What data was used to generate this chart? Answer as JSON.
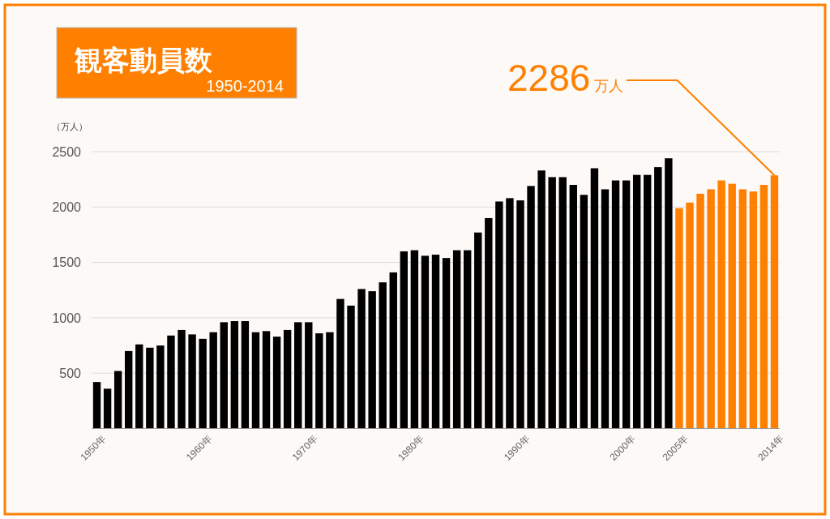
{
  "chart_data": {
    "type": "bar",
    "title": "観客動員数",
    "subtitle": "1950-2014",
    "ylabel": "（万人）",
    "categories": [
      "1950年",
      null,
      null,
      null,
      null,
      null,
      null,
      null,
      null,
      null,
      "1960年",
      null,
      null,
      null,
      null,
      null,
      null,
      null,
      null,
      null,
      "1970年",
      null,
      null,
      null,
      null,
      null,
      null,
      null,
      null,
      null,
      "1980年",
      null,
      null,
      null,
      null,
      null,
      null,
      null,
      null,
      null,
      "1990年",
      null,
      null,
      null,
      null,
      null,
      null,
      null,
      null,
      null,
      "2000年",
      null,
      null,
      null,
      null,
      "2005年",
      null,
      null,
      null,
      null,
      null,
      null,
      null,
      null,
      "2014年"
    ],
    "values": [
      420,
      360,
      520,
      700,
      760,
      730,
      750,
      840,
      890,
      850,
      810,
      870,
      960,
      970,
      970,
      870,
      880,
      830,
      890,
      960,
      960,
      860,
      870,
      1170,
      1110,
      1260,
      1240,
      1320,
      1410,
      1600,
      1610,
      1560,
      1570,
      1540,
      1610,
      1610,
      1770,
      1900,
      2050,
      2080,
      2060,
      2190,
      2330,
      2270,
      2270,
      2200,
      2110,
      2350,
      2160,
      2240,
      2240,
      2290,
      2290,
      2360,
      2440,
      1990,
      2040,
      2120,
      2160,
      2240,
      2210,
      2160,
      2140,
      2200,
      2286
    ],
    "colors": [
      "#000000",
      "#000000",
      "#000000",
      "#000000",
      "#000000",
      "#000000",
      "#000000",
      "#000000",
      "#000000",
      "#000000",
      "#000000",
      "#000000",
      "#000000",
      "#000000",
      "#000000",
      "#000000",
      "#000000",
      "#000000",
      "#000000",
      "#000000",
      "#000000",
      "#000000",
      "#000000",
      "#000000",
      "#000000",
      "#000000",
      "#000000",
      "#000000",
      "#000000",
      "#000000",
      "#000000",
      "#000000",
      "#000000",
      "#000000",
      "#000000",
      "#000000",
      "#000000",
      "#000000",
      "#000000",
      "#000000",
      "#000000",
      "#000000",
      "#000000",
      "#000000",
      "#000000",
      "#000000",
      "#000000",
      "#000000",
      "#000000",
      "#000000",
      "#000000",
      "#000000",
      "#000000",
      "#000000",
      "#000000",
      "#ff8000",
      "#ff8000",
      "#ff8000",
      "#ff8000",
      "#ff8000",
      "#ff8000",
      "#ff8000",
      "#ff8000",
      "#ff8000",
      "#ff8000"
    ],
    "ylim": [
      0,
      2500
    ],
    "yticks": [
      500,
      1000,
      1500,
      2000,
      2500
    ],
    "grid": "y",
    "annotations": [
      {
        "text": "2286万人",
        "x": "2014年",
        "y": 2286
      }
    ]
  }
}
